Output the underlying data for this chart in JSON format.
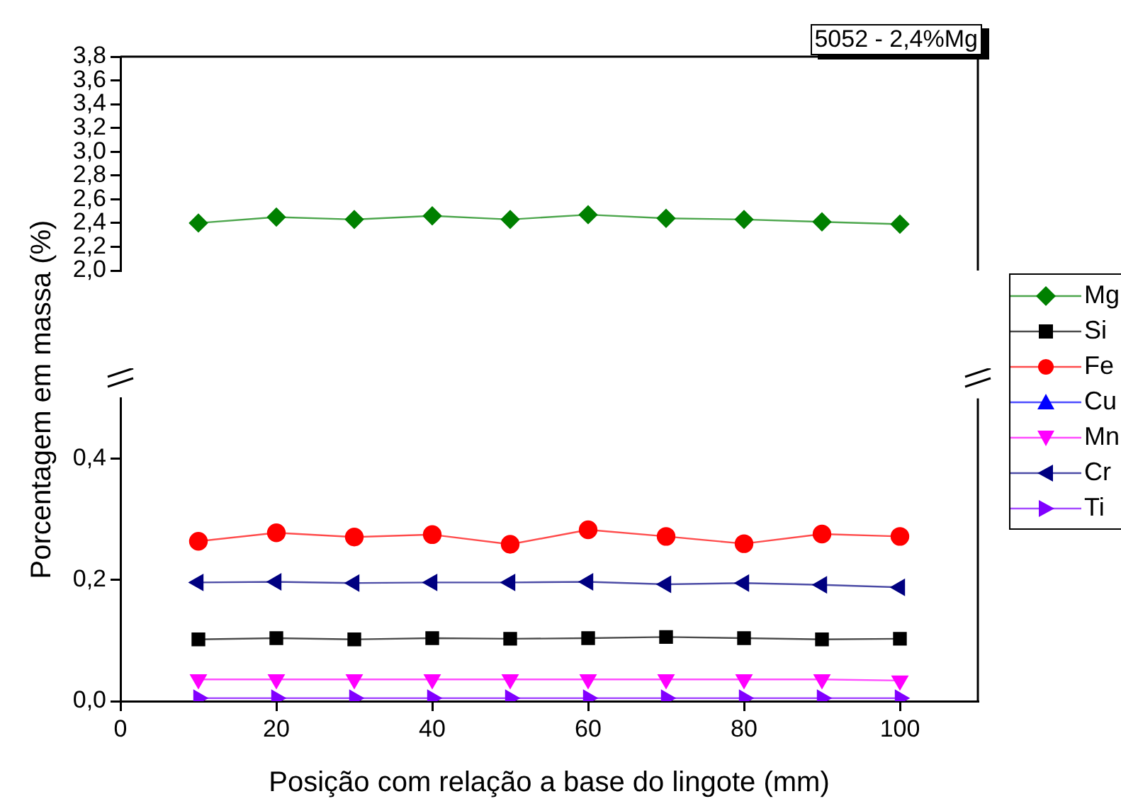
{
  "chart_data": [
    {
      "type": "line",
      "title": "5052 - 2,4%Mg",
      "ylabel": "Porcentagem em massa (%)",
      "x": [
        10,
        20,
        30,
        40,
        50,
        60,
        70,
        80,
        90,
        100
      ],
      "xlim": [
        0,
        110
      ],
      "ylim": [
        2.0,
        3.8
      ],
      "yticks": [
        {
          "value": 2.0,
          "label": "2,0"
        },
        {
          "value": 2.2,
          "label": "2,2"
        },
        {
          "value": 2.4,
          "label": "2,4"
        },
        {
          "value": 2.6,
          "label": "2,6"
        },
        {
          "value": 2.8,
          "label": "2,8"
        },
        {
          "value": 3.0,
          "label": "3,0"
        },
        {
          "value": 3.2,
          "label": "3,2"
        },
        {
          "value": 3.4,
          "label": "3,4"
        },
        {
          "value": 3.6,
          "label": "3,6"
        },
        {
          "value": 3.8,
          "label": "3,8"
        }
      ],
      "tick_labels": "y",
      "grid": false,
      "legend": "right",
      "series": [
        {
          "name": "Mg",
          "color": "#008000",
          "marker": "diamond",
          "values": [
            2.4,
            2.45,
            2.43,
            2.46,
            2.43,
            2.47,
            2.44,
            2.43,
            2.41,
            2.39
          ]
        }
      ]
    },
    {
      "type": "line",
      "xlabel": "Posição com relação a base do lingote (mm)",
      "x": [
        10,
        20,
        30,
        40,
        50,
        60,
        70,
        80,
        90,
        100
      ],
      "xlim": [
        0,
        110
      ],
      "xticks": [
        0,
        20,
        40,
        60,
        80,
        100
      ],
      "ylim": [
        0,
        0.5
      ],
      "yticks": [
        {
          "value": 0,
          "label": "0,0"
        },
        {
          "value": 0.2,
          "label": "0,2"
        },
        {
          "value": 0.4,
          "label": "0,4"
        }
      ],
      "grid": false,
      "legend": "right",
      "series": [
        {
          "name": "Si",
          "color": "#000000",
          "marker": "square",
          "values": [
            0.102,
            0.104,
            0.102,
            0.104,
            0.103,
            0.104,
            0.106,
            0.104,
            0.102,
            0.103
          ]
        },
        {
          "name": "Fe",
          "color": "#ff0000",
          "marker": "circle",
          "values": [
            0.264,
            0.278,
            0.271,
            0.275,
            0.259,
            0.283,
            0.272,
            0.26,
            0.276,
            0.272
          ]
        },
        {
          "name": "Cu",
          "color": "#0000ff",
          "marker": "triangle",
          "values": [
            null,
            null,
            null,
            null,
            null,
            null,
            null,
            null,
            null,
            null
          ]
        },
        {
          "name": "Mn",
          "color": "#ff00ff",
          "marker": "triangle-down",
          "values": [
            0.036,
            0.036,
            0.036,
            0.036,
            0.036,
            0.036,
            0.036,
            0.036,
            0.036,
            0.034
          ]
        },
        {
          "name": "Cr",
          "color": "#000080",
          "marker": "triangle-left",
          "values": [
            0.196,
            0.197,
            0.195,
            0.196,
            0.196,
            0.197,
            0.193,
            0.195,
            0.192,
            0.188
          ]
        },
        {
          "name": "Ti",
          "color": "#8000ff",
          "marker": "triangle-right",
          "values": [
            0.005,
            0.005,
            0.005,
            0.005,
            0.005,
            0.005,
            0.005,
            0.005,
            0.005,
            0.005
          ]
        }
      ]
    }
  ]
}
